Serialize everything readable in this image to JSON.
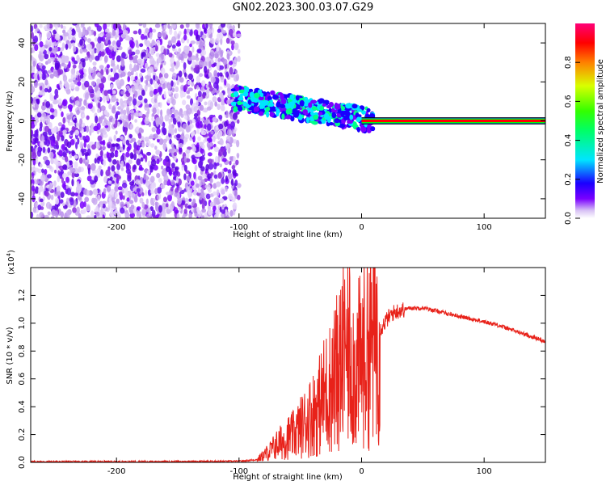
{
  "page": {
    "title": "GN02.2023.300.03.07.G29"
  },
  "chart_data": [
    {
      "type": "heatmap",
      "xlabel": "Height of straight line (km)",
      "ylabel": "Frequency (Hz)",
      "xlim": [
        -270,
        150
      ],
      "ylim": [
        -50,
        50
      ],
      "x_ticks": [
        -200,
        -100,
        0,
        100
      ],
      "y_ticks": [
        -40,
        -20,
        0,
        20,
        40
      ],
      "colorbar": {
        "label": "Normalized spectral amplitude",
        "range": [
          0.0,
          1.0
        ],
        "ticks": [
          0.0,
          0.2,
          0.4,
          0.6,
          0.8
        ],
        "colors": [
          "#ffffff",
          "#c9a9f0",
          "#7a00ff",
          "#1a00ff",
          "#00e5ff",
          "#00ff00",
          "#d9ff00",
          "#ff8000",
          "#ff0000",
          "#ff0078"
        ]
      },
      "regions": [
        {
          "x_range": [
            -270,
            -100
          ],
          "frequency_range": [
            -50,
            50
          ],
          "amplitude": "low (0.05-0.3), scattered noise"
        },
        {
          "x_range": [
            -105,
            10
          ],
          "frequency_center": [
            12,
            0
          ],
          "amplitude": "medium-high (0.3-0.7)"
        },
        {
          "x_range": [
            10,
            150
          ],
          "frequency": 0,
          "amplitude": "high (0.9-1.0)"
        }
      ],
      "grid": false
    },
    {
      "type": "line",
      "xlabel": "Height of straight line (km)",
      "ylabel": "SNR (10 * v/v)",
      "y_scale_label": "(x10",
      "y_scale_exponent": "4",
      "y_scale_suffix": ")",
      "xlim": [
        -270,
        150
      ],
      "ylim": [
        0,
        1.4
      ],
      "x_ticks": [
        -200,
        -100,
        0,
        100
      ],
      "y_ticks": [
        0.0,
        0.2,
        0.4,
        0.6,
        0.8,
        1.0,
        1.2
      ],
      "series": [
        {
          "color": "#e8221a",
          "x": [
            -270,
            -200,
            -150,
            -100,
            -85,
            -80,
            -75,
            -70,
            -65,
            -60,
            -55,
            -50,
            -45,
            -40,
            -35,
            -30,
            -25,
            -20,
            -15,
            -10,
            -5,
            0,
            5,
            10,
            15,
            20,
            25,
            30,
            40,
            50,
            60,
            70,
            80,
            90,
            100,
            110,
            120,
            130,
            140,
            150
          ],
          "values": [
            0.005,
            0.005,
            0.006,
            0.008,
            0.02,
            0.05,
            0.08,
            0.12,
            0.15,
            0.18,
            0.2,
            0.25,
            0.3,
            0.35,
            0.4,
            0.5,
            0.55,
            0.65,
            0.75,
            0.8,
            0.65,
            0.75,
            0.8,
            0.9,
            0.95,
            1.02,
            1.07,
            1.09,
            1.11,
            1.11,
            1.09,
            1.07,
            1.05,
            1.03,
            1.01,
            0.99,
            0.96,
            0.93,
            0.9,
            0.87
          ]
        }
      ],
      "grid": false
    }
  ]
}
